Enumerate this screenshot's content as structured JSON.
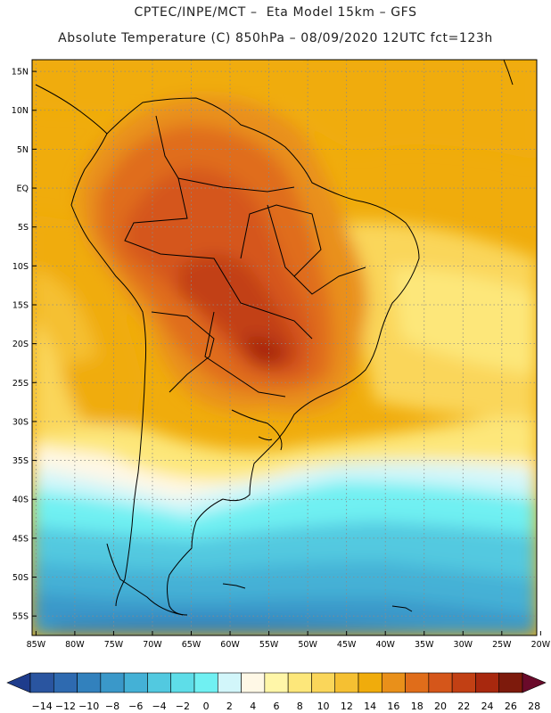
{
  "title": {
    "line1": "CPTEC/INPE/MCT –  Eta Model 15km – GFS",
    "line2": "Absolute Temperature (C) 850hPa – 08/09/2020 12UTC fct=123h"
  },
  "map": {
    "lat_labels": [
      "15N",
      "10N",
      "5N",
      "EQ",
      "5S",
      "10S",
      "15S",
      "20S",
      "25S",
      "30S",
      "35S",
      "40S",
      "45S",
      "50S",
      "55S"
    ],
    "lon_labels": [
      "85W",
      "80W",
      "75W",
      "70W",
      "65W",
      "60W",
      "55W",
      "50W",
      "45W",
      "40W",
      "35W",
      "30W",
      "25W",
      "20W"
    ],
    "lat_range": [
      -57.5,
      16.5
    ],
    "lon_range": [
      -85.5,
      -20.5
    ]
  },
  "colorbar": {
    "tick_labels": [
      "-14",
      "-12",
      "-10",
      "-8",
      "-6",
      "-4",
      "-2",
      "0",
      "2",
      "4",
      "6",
      "8",
      "10",
      "12",
      "14",
      "16",
      "18",
      "20",
      "22",
      "24",
      "26",
      "28"
    ],
    "colors": [
      "#1e3c8c",
      "#2a55a0",
      "#2e6ab0",
      "#3281bd",
      "#3a98c9",
      "#44b1d6",
      "#52c9e0",
      "#5edde8",
      "#70f0f2",
      "#d2f6fa",
      "#fff8e6",
      "#fff6a8",
      "#fde77a",
      "#fad65a",
      "#f5c032",
      "#f0ac0c",
      "#e9901a",
      "#e06d1a",
      "#d5561a",
      "#c24014",
      "#a8280e",
      "#7d1a0c",
      "#6a0a2a"
    ]
  }
}
